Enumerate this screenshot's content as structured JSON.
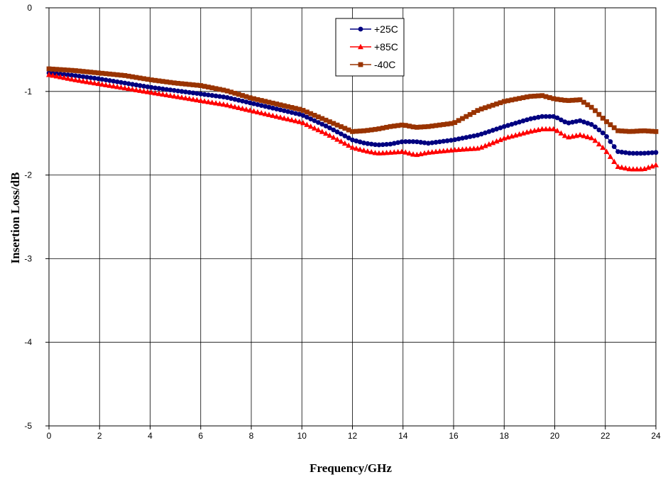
{
  "chart_data": {
    "type": "line",
    "title": "",
    "xlabel": "Frequency/GHz",
    "ylabel": "Insertion Loss/dB",
    "xlim": [
      0,
      24
    ],
    "ylim": [
      -5,
      0
    ],
    "xticks": [
      0,
      2,
      4,
      6,
      8,
      10,
      12,
      14,
      16,
      18,
      20,
      22,
      24
    ],
    "yticks": [
      0,
      -1,
      -2,
      -3,
      -4,
      -5
    ],
    "grid": true,
    "legend_position": "top-center",
    "series": [
      {
        "name": "+25C",
        "color": "#000080",
        "marker": "circle",
        "x": [
          0,
          1,
          2,
          3,
          4,
          5,
          6,
          7,
          8,
          9,
          10,
          11,
          12,
          12.5,
          13,
          13.5,
          14,
          14.5,
          15,
          16,
          17,
          18,
          19,
          19.5,
          20,
          20.5,
          21,
          21.5,
          22,
          22.5,
          23,
          23.5,
          24
        ],
        "y": [
          -0.78,
          -0.81,
          -0.85,
          -0.9,
          -0.95,
          -0.99,
          -1.03,
          -1.07,
          -1.14,
          -1.21,
          -1.28,
          -1.42,
          -1.58,
          -1.62,
          -1.64,
          -1.63,
          -1.6,
          -1.6,
          -1.62,
          -1.58,
          -1.52,
          -1.42,
          -1.33,
          -1.3,
          -1.3,
          -1.38,
          -1.35,
          -1.4,
          -1.52,
          -1.72,
          -1.74,
          -1.74,
          -1.73
        ]
      },
      {
        "name": "+85C",
        "color": "#ff0000",
        "marker": "triangle",
        "x": [
          0,
          1,
          2,
          3,
          4,
          5,
          6,
          7,
          8,
          9,
          10,
          11,
          12,
          12.5,
          13,
          13.5,
          14,
          14.5,
          15,
          16,
          17,
          18,
          19,
          19.5,
          20,
          20.5,
          21,
          21.5,
          22,
          22.5,
          23,
          23.5,
          24
        ],
        "y": [
          -0.8,
          -0.86,
          -0.91,
          -0.96,
          -1.01,
          -1.06,
          -1.11,
          -1.16,
          -1.23,
          -1.3,
          -1.37,
          -1.51,
          -1.67,
          -1.71,
          -1.74,
          -1.73,
          -1.72,
          -1.76,
          -1.73,
          -1.7,
          -1.68,
          -1.56,
          -1.48,
          -1.45,
          -1.45,
          -1.55,
          -1.52,
          -1.56,
          -1.7,
          -1.9,
          -1.93,
          -1.93,
          -1.88
        ]
      },
      {
        "name": "-40C",
        "color": "#993300",
        "marker": "square",
        "x": [
          0,
          1,
          2,
          3,
          4,
          5,
          6,
          7,
          8,
          9,
          10,
          11,
          12,
          12.5,
          13,
          13.5,
          14,
          14.5,
          15,
          16,
          17,
          18,
          19,
          19.5,
          20,
          20.5,
          21,
          21.5,
          22,
          22.5,
          23,
          23.5,
          24
        ],
        "y": [
          -0.73,
          -0.75,
          -0.78,
          -0.81,
          -0.86,
          -0.9,
          -0.93,
          -0.99,
          -1.08,
          -1.15,
          -1.22,
          -1.35,
          -1.48,
          -1.47,
          -1.45,
          -1.42,
          -1.4,
          -1.43,
          -1.42,
          -1.38,
          -1.22,
          -1.12,
          -1.06,
          -1.05,
          -1.09,
          -1.11,
          -1.1,
          -1.2,
          -1.35,
          -1.47,
          -1.48,
          -1.47,
          -1.48
        ]
      }
    ]
  }
}
